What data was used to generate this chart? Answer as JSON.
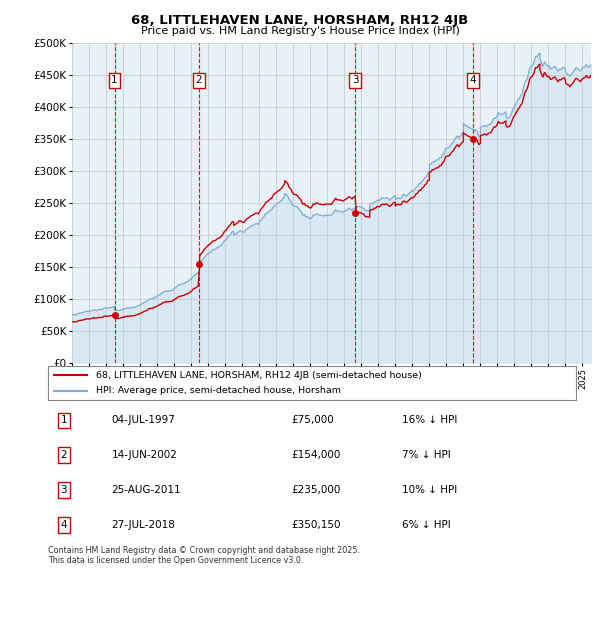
{
  "title": "68, LITTLEHAVEN LANE, HORSHAM, RH12 4JB",
  "subtitle": "Price paid vs. HM Land Registry's House Price Index (HPI)",
  "ylabel_ticks": [
    "£0",
    "£50K",
    "£100K",
    "£150K",
    "£200K",
    "£250K",
    "£300K",
    "£350K",
    "£400K",
    "£450K",
    "£500K"
  ],
  "ylim": [
    0,
    500000
  ],
  "xlim_start": 1995.0,
  "xlim_end": 2025.5,
  "purchase_dates": [
    1997.5,
    2002.45,
    2011.65,
    2018.57
  ],
  "purchase_prices": [
    75000,
    154000,
    235000,
    350150
  ],
  "purchase_labels": [
    "1",
    "2",
    "3",
    "4"
  ],
  "legend_line1": "68, LITTLEHAVEN LANE, HORSHAM, RH12 4JB (semi-detached house)",
  "legend_line2": "HPI: Average price, semi-detached house, Horsham",
  "table_rows": [
    [
      "1",
      "04-JUL-1997",
      "£75,000",
      "16% ↓ HPI"
    ],
    [
      "2",
      "14-JUN-2002",
      "£154,000",
      "7% ↓ HPI"
    ],
    [
      "3",
      "25-AUG-2011",
      "£235,000",
      "10% ↓ HPI"
    ],
    [
      "4",
      "27-JUL-2018",
      "£350,150",
      "6% ↓ HPI"
    ]
  ],
  "footnote": "Contains HM Land Registry data © Crown copyright and database right 2025.\nThis data is licensed under the Open Government Licence v3.0.",
  "red_line_color": "#cc0000",
  "blue_line_color": "#7aafd4",
  "blue_fill_color": "#d6e8f5",
  "grid_color": "#cccccc",
  "vline_color": "#cc0000",
  "background_color": "#ffffff",
  "plot_bg_color": "#e8f0f8"
}
